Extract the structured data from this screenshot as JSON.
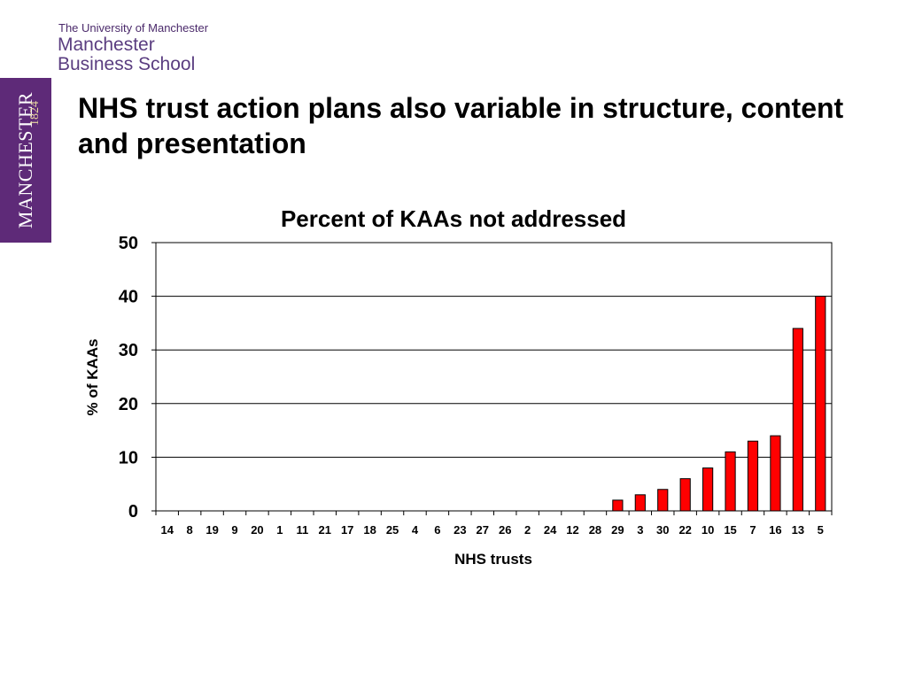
{
  "branding": {
    "university": "The University of Manchester",
    "school_line1": "Manchester",
    "school_line2": "Business School",
    "crest_name": "MANCHESTER",
    "crest_year": "1824",
    "colors": {
      "purple": "#5e2a78",
      "text_purple": "#4b2a6b"
    }
  },
  "slide": {
    "title": "NHS trust action plans also variable in structure, content and presentation"
  },
  "chart_data": {
    "type": "bar",
    "title": "Percent of KAAs not addressed",
    "xlabel": "NHS trusts",
    "ylabel": "% of KAAs",
    "ylim": [
      0,
      50
    ],
    "yticks": [
      0,
      10,
      20,
      30,
      40,
      50
    ],
    "grid": true,
    "legend": "none",
    "bar_color": "#ff0000",
    "categories": [
      "14",
      "8",
      "19",
      "9",
      "20",
      "1",
      "11",
      "21",
      "17",
      "18",
      "25",
      "4",
      "6",
      "23",
      "27",
      "26",
      "2",
      "24",
      "12",
      "28",
      "29",
      "3",
      "30",
      "22",
      "10",
      "15",
      "7",
      "16",
      "13",
      "5"
    ],
    "values": [
      0,
      0,
      0,
      0,
      0,
      0,
      0,
      0,
      0,
      0,
      0,
      0,
      0,
      0,
      0,
      0,
      0,
      0,
      0,
      0,
      2,
      3,
      4,
      6,
      8,
      11,
      13,
      14,
      34,
      40
    ]
  }
}
